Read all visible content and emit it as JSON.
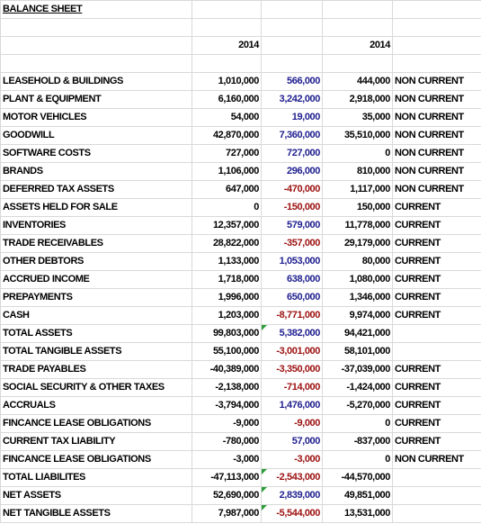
{
  "title": "BALANCE SHEET",
  "headers": [
    "2014",
    "2014"
  ],
  "rows": [
    [
      "LEASEHOLD & BUILDINGS",
      "1,010,000",
      "566,000",
      "444,000",
      "NON CURRENT"
    ],
    [
      "PLANT & EQUIPMENT",
      "6,160,000",
      "3,242,000",
      "2,918,000",
      "NON CURRENT"
    ],
    [
      "MOTOR VEHICLES",
      "54,000",
      "19,000",
      "35,000",
      "NON CURRENT"
    ],
    [
      "GOODWILL",
      "42,870,000",
      "7,360,000",
      "35,510,000",
      "NON CURRENT"
    ],
    [
      "SOFTWARE COSTS",
      "727,000",
      "727,000",
      "0",
      "NON CURRENT"
    ],
    [
      "BRANDS",
      "1,106,000",
      "296,000",
      "810,000",
      "NON CURRENT"
    ],
    [
      "DEFERRED TAX ASSETS",
      "647,000",
      "-470,000",
      "1,117,000",
      "NON CURRENT"
    ],
    [
      "ASSETS HELD FOR SALE",
      "0",
      "-150,000",
      "150,000",
      "CURRENT"
    ],
    [
      "INVENTORIES",
      "12,357,000",
      "579,000",
      "11,778,000",
      "CURRENT"
    ],
    [
      "TRADE RECEIVABLES",
      "28,822,000",
      "-357,000",
      "29,179,000",
      "CURRENT"
    ],
    [
      "OTHER DEBTORS",
      "1,133,000",
      "1,053,000",
      "80,000",
      "CURRENT"
    ],
    [
      "ACCRUED INCOME",
      "1,718,000",
      "638,000",
      "1,080,000",
      "CURRENT"
    ],
    [
      "PREPAYMENTS",
      "1,996,000",
      "650,000",
      "1,346,000",
      "CURRENT"
    ],
    [
      "CASH",
      "1,203,000",
      "-8,771,000",
      "9,974,000",
      "CURRENT"
    ],
    [
      "TOTAL ASSETS",
      "99,803,000",
      "5,382,000",
      "94,421,000"
    ],
    [
      "TOTAL TANGIBLE ASSETS",
      "55,100,000",
      "-3,001,000",
      "58,101,000"
    ],
    [
      "TRADE PAYABLES",
      "-40,389,000",
      "-3,350,000",
      "-37,039,000",
      "CURRENT"
    ],
    [
      "SOCIAL SECURITY & OTHER TAXES",
      "-2,138,000",
      "-714,000",
      "-1,424,000",
      "CURRENT"
    ],
    [
      "ACCRUALS",
      "-3,794,000",
      "1,476,000",
      "-5,270,000",
      "CURRENT"
    ],
    [
      "FINCANCE LEASE OBLIGATIONS",
      "-9,000",
      "-9,000",
      "0",
      "CURRENT"
    ],
    [
      "CURRENT TAX LIABILITY",
      "-780,000",
      "57,000",
      "-837,000",
      "CURRENT"
    ],
    [
      "FINCANCE LEASE OBLIGATIONS",
      "-3,000",
      "-3,000",
      "0",
      "NON CURRENT"
    ],
    [
      "TOTAL LIABILITES",
      "-47,113,000",
      "-2,543,000",
      "-44,570,000"
    ],
    [
      "NET ASSETS",
      "52,690,000",
      "2,839,000",
      "49,851,000"
    ],
    [
      "NET TANGIBLE ASSETS",
      "7,987,000",
      "-5,544,000",
      "13,531,000"
    ]
  ]
}
